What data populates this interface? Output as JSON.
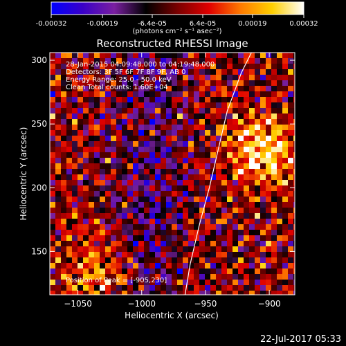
{
  "colorbar": {
    "tick_labels": [
      "-0.00032",
      "-0.00019",
      "-6.4e-05",
      "6.4e-05",
      "0.00019",
      "0.00032"
    ],
    "range": [
      -0.00032,
      0.00032
    ],
    "units": "(photons cm⁻² s⁻¹ asec⁻²)",
    "colors": [
      "#0000ff",
      "#3a00c8",
      "#7a1fa0",
      "#000000",
      "#7a0000",
      "#e00000",
      "#ff7a00",
      "#ffd000",
      "#ffffff"
    ]
  },
  "chart_data": {
    "type": "heatmap",
    "title": "Reconstructed RHESSI Image",
    "xlabel": "Heliocentric X (arcsec)",
    "ylabel": "Heliocentric Y (arcsec)",
    "xlim": [
      -1072,
      -880
    ],
    "ylim": [
      116,
      306
    ],
    "x_ticks": [
      -1050,
      -1000,
      -950,
      -900
    ],
    "y_ticks": [
      150,
      200,
      250,
      300
    ],
    "x_tick_labels": [
      "−1050",
      "−1000",
      "−950",
      "−900"
    ],
    "y_tick_labels": [
      "150",
      "200",
      "250",
      "300"
    ],
    "annotations": [
      "28-Jan-2015 04:09:48.000 to 04:19:48.000",
      "Detectors: 3F 5F 6F 7F 8F 9F, AB 0",
      "Energy Range: 25.0 - 50.0 keV",
      "Clean    Total counts: 1.60E+04"
    ],
    "peak_label": "Position of Peak = [-905,230]",
    "peak": [
      -905,
      230
    ],
    "limb_points": [
      [
        -966,
        116
      ],
      [
        -962,
        140
      ],
      [
        -955,
        170
      ],
      [
        -947,
        200
      ],
      [
        -940,
        230
      ],
      [
        -933,
        260
      ],
      [
        -922,
        290
      ],
      [
        -914,
        306
      ]
    ]
  },
  "footer": {
    "date": "22-Jul-2017 05:33"
  }
}
